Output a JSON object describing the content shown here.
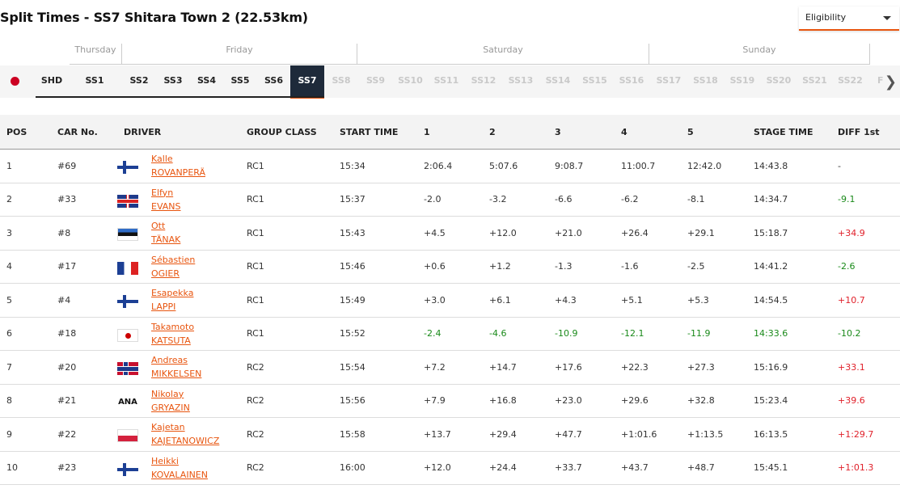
{
  "title": "Split Times - SS7 Shitara Town 2 (22.53km)",
  "eligibility": {
    "label": "Eligibility"
  },
  "days": [
    {
      "label": "Thursday"
    },
    {
      "label": "Friday"
    },
    {
      "label": "Saturday"
    },
    {
      "label": "Sunday"
    }
  ],
  "tabs": [
    {
      "label": "SHD",
      "state": "enabled"
    },
    {
      "label": "SS1",
      "state": "enabled"
    },
    {
      "label": "SS2",
      "state": "enabled"
    },
    {
      "label": "SS3",
      "state": "enabled"
    },
    {
      "label": "SS4",
      "state": "enabled"
    },
    {
      "label": "SS5",
      "state": "enabled"
    },
    {
      "label": "SS6",
      "state": "enabled"
    },
    {
      "label": "SS7",
      "state": "active"
    },
    {
      "label": "SS8",
      "state": "disabled"
    },
    {
      "label": "SS9",
      "state": "disabled"
    },
    {
      "label": "SS10",
      "state": "disabled"
    },
    {
      "label": "SS11",
      "state": "disabled"
    },
    {
      "label": "SS12",
      "state": "disabled"
    },
    {
      "label": "SS13",
      "state": "disabled"
    },
    {
      "label": "SS14",
      "state": "disabled"
    },
    {
      "label": "SS15",
      "state": "disabled"
    },
    {
      "label": "SS16",
      "state": "disabled"
    },
    {
      "label": "SS17",
      "state": "disabled"
    },
    {
      "label": "SS18",
      "state": "disabled"
    },
    {
      "label": "SS19",
      "state": "disabled"
    },
    {
      "label": "SS20",
      "state": "disabled"
    },
    {
      "label": "SS21",
      "state": "disabled"
    },
    {
      "label": "SS22",
      "state": "disabled"
    },
    {
      "label": "FINAL",
      "state": "disabled"
    }
  ],
  "table": {
    "headers": [
      "POS",
      "CAR No.",
      "DRIVER",
      "GROUP CLASS",
      "START TIME",
      "1",
      "2",
      "3",
      "4",
      "5",
      "STAGE TIME",
      "DIFF 1st"
    ],
    "rows": [
      {
        "pos": "1",
        "car": "#69",
        "flag": "fin",
        "first": "Kalle",
        "last": "ROVANPERÄ",
        "class": "RC1",
        "start": "15:34",
        "s1": "2:06.4",
        "s2": "5:07.6",
        "s3": "9:08.7",
        "s4": "11:00.7",
        "s5": "12:42.0",
        "stage": "14:43.8",
        "diff": "-"
      },
      {
        "pos": "2",
        "car": "#33",
        "flag": "gbr",
        "first": "Elfyn",
        "last": "EVANS",
        "class": "RC1",
        "start": "15:37",
        "s1": "-2.0",
        "s2": "-3.2",
        "s3": "-6.6",
        "s4": "-6.2",
        "s5": "-8.1",
        "stage": "14:34.7",
        "diff": "-9.1"
      },
      {
        "pos": "3",
        "car": "#8",
        "flag": "est",
        "first": "Ott",
        "last": "TÄNAK",
        "class": "RC1",
        "start": "15:43",
        "s1": "+4.5",
        "s2": "+12.0",
        "s3": "+21.0",
        "s4": "+26.4",
        "s5": "+29.1",
        "stage": "15:18.7",
        "diff": "+34.9"
      },
      {
        "pos": "4",
        "car": "#17",
        "flag": "fra",
        "first": "Sébastien",
        "last": "OGIER",
        "class": "RC1",
        "start": "15:46",
        "s1": "+0.6",
        "s2": "+1.2",
        "s3": "-1.3",
        "s4": "-1.6",
        "s5": "-2.5",
        "stage": "14:41.2",
        "diff": "-2.6"
      },
      {
        "pos": "5",
        "car": "#4",
        "flag": "fin",
        "first": "Esapekka",
        "last": "LAPPI",
        "class": "RC1",
        "start": "15:49",
        "s1": "+3.0",
        "s2": "+6.1",
        "s3": "+4.3",
        "s4": "+5.1",
        "s5": "+5.3",
        "stage": "14:54.5",
        "diff": "+10.7"
      },
      {
        "pos": "6",
        "car": "#18",
        "flag": "jpn",
        "first": "Takamoto",
        "last": "KATSUTA",
        "class": "RC1",
        "start": "15:52",
        "s1": "-2.4",
        "s2": "-4.6",
        "s3": "-10.9",
        "s4": "-12.1",
        "s5": "-11.9",
        "stage": "14:33.6",
        "diff": "-10.2"
      },
      {
        "pos": "7",
        "car": "#20",
        "flag": "nor",
        "first": "Andreas",
        "last": "MIKKELSEN",
        "class": "RC2",
        "start": "15:54",
        "s1": "+7.2",
        "s2": "+14.7",
        "s3": "+17.6",
        "s4": "+22.3",
        "s5": "+27.3",
        "stage": "15:16.9",
        "diff": "+33.1"
      },
      {
        "pos": "8",
        "car": "#21",
        "flag": "ana",
        "flag_text": "ANA",
        "first": "Nikolay",
        "last": "GRYAZIN",
        "class": "RC2",
        "start": "15:56",
        "s1": "+7.9",
        "s2": "+16.8",
        "s3": "+23.0",
        "s4": "+29.6",
        "s5": "+32.8",
        "stage": "15:23.4",
        "diff": "+39.6"
      },
      {
        "pos": "9",
        "car": "#22",
        "flag": "pol",
        "first": "Kajetan",
        "last": "KAJETANOWICZ",
        "class": "RC2",
        "start": "15:58",
        "s1": "+13.7",
        "s2": "+29.4",
        "s3": "+47.7",
        "s4": "+1:01.6",
        "s5": "+1:13.5",
        "stage": "16:13.5",
        "diff": "+1:29.7"
      },
      {
        "pos": "10",
        "car": "#23",
        "flag": "fin",
        "first": "Heikki",
        "last": "KOVALAINEN",
        "class": "RC2",
        "start": "16:00",
        "s1": "+12.0",
        "s2": "+24.4",
        "s3": "+33.7",
        "s4": "+43.7",
        "s5": "+48.7",
        "stage": "15:45.1",
        "diff": "+1:01.3"
      }
    ]
  },
  "colors": {
    "accent": "#e8550f",
    "active_tab": "#1e2a3a",
    "faster": "#1a8a1a",
    "slower": "#e0202a"
  }
}
